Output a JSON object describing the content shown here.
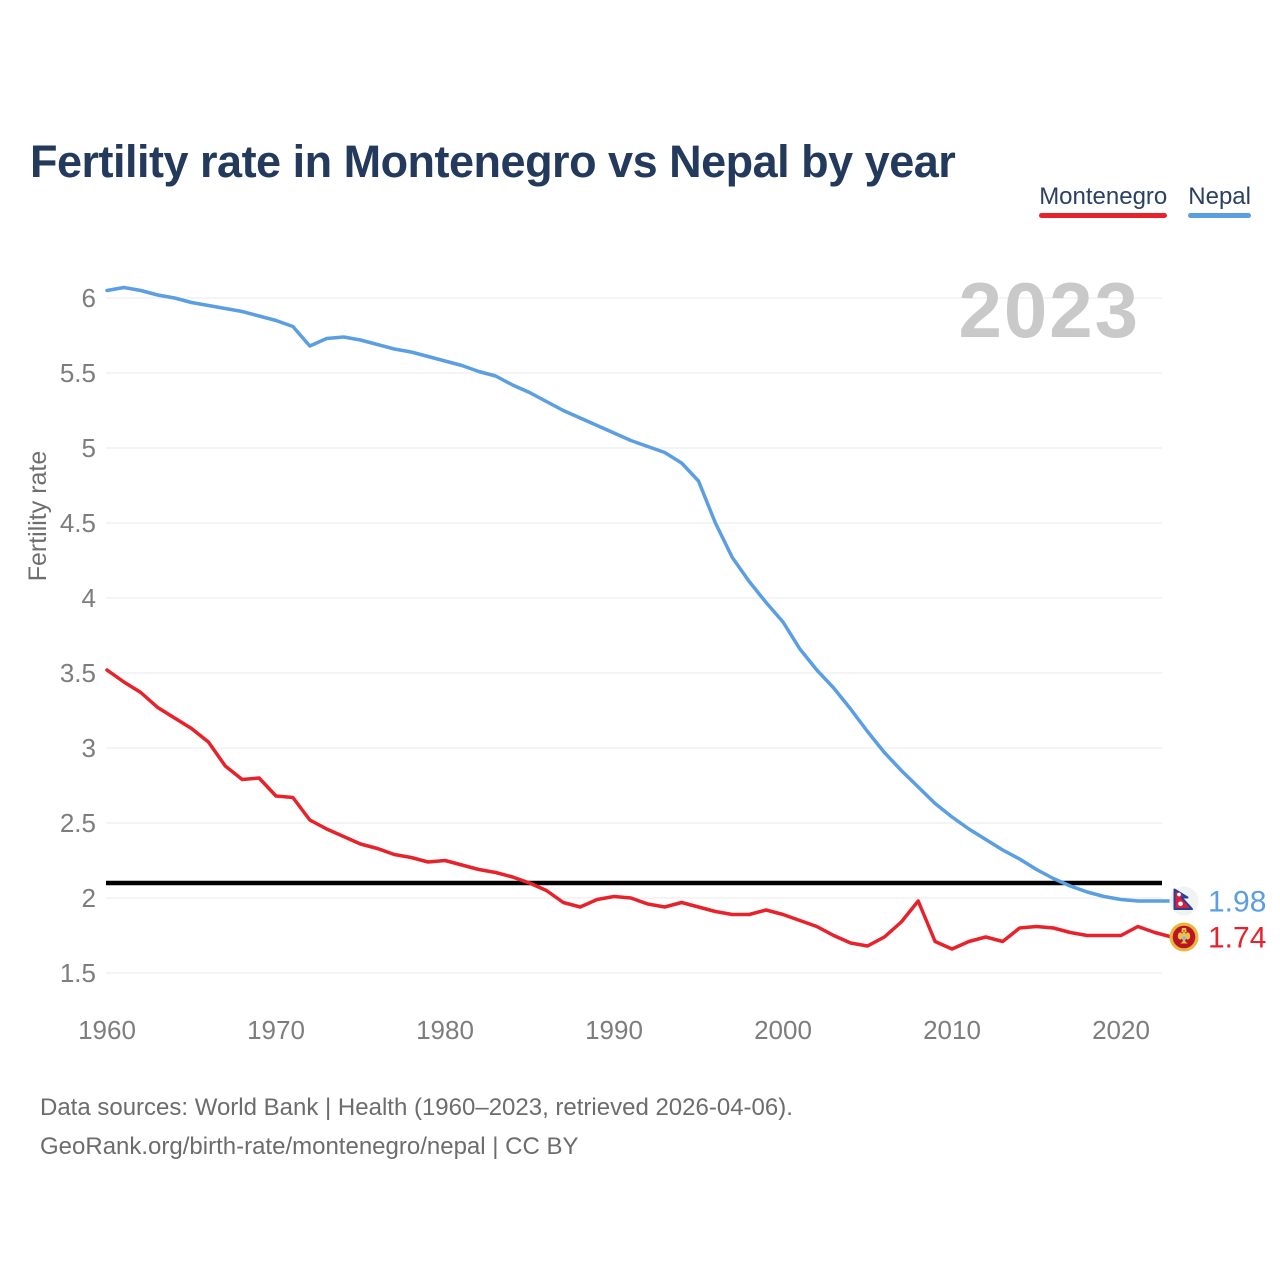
{
  "header": {
    "title": "Fertility rate in Montenegro vs Nepal by year"
  },
  "legend": [
    {
      "label": "Montenegro",
      "color": "#e8222b"
    },
    {
      "label": "Nepal",
      "color": "#5b9ee2"
    }
  ],
  "watermark": "2023",
  "chart_data": {
    "type": "line",
    "title": "Fertility rate in Montenegro vs Nepal by year",
    "xlabel": "",
    "ylabel": "Fertility rate",
    "x_ticks": [
      1960,
      1970,
      1980,
      1990,
      2000,
      2010,
      2020
    ],
    "y_ticks": [
      6,
      5.5,
      5,
      4.5,
      4,
      3.5,
      3,
      2.5,
      2,
      1.5
    ],
    "xlim": [
      1960,
      2023
    ],
    "ylim": [
      1.5,
      6.1
    ],
    "grid": "horizontal-only",
    "legend_position": "top-right",
    "axis_text_color": "#7d7d7d",
    "gridline_color": "#e8e8e8",
    "reference_line": {
      "value": 2.1,
      "color": "#000000"
    },
    "years": [
      1960,
      1961,
      1962,
      1963,
      1964,
      1965,
      1966,
      1967,
      1968,
      1969,
      1970,
      1971,
      1972,
      1973,
      1974,
      1975,
      1976,
      1977,
      1978,
      1979,
      1980,
      1981,
      1982,
      1983,
      1984,
      1985,
      1986,
      1987,
      1988,
      1989,
      1990,
      1991,
      1992,
      1993,
      1994,
      1995,
      1996,
      1997,
      1998,
      1999,
      2000,
      2001,
      2002,
      2003,
      2004,
      2005,
      2006,
      2007,
      2008,
      2009,
      2010,
      2011,
      2012,
      2013,
      2014,
      2015,
      2016,
      2017,
      2018,
      2019,
      2020,
      2021,
      2022,
      2023
    ],
    "series": [
      {
        "name": "Montenegro",
        "color": "#e8222b",
        "flag_icon": "montenegro-flag-icon",
        "end_label": "1.74",
        "values": [
          3.52,
          3.44,
          3.37,
          3.27,
          3.2,
          3.13,
          3.04,
          2.88,
          2.79,
          2.8,
          2.68,
          2.67,
          2.52,
          2.46,
          2.41,
          2.36,
          2.33,
          2.29,
          2.27,
          2.24,
          2.25,
          2.22,
          2.19,
          2.17,
          2.14,
          2.1,
          2.05,
          1.97,
          1.94,
          1.99,
          2.01,
          2.0,
          1.96,
          1.94,
          1.97,
          1.94,
          1.91,
          1.89,
          1.89,
          1.92,
          1.89,
          1.85,
          1.81,
          1.75,
          1.7,
          1.68,
          1.74,
          1.84,
          1.98,
          1.71,
          1.66,
          1.71,
          1.74,
          1.71,
          1.8,
          1.81,
          1.8,
          1.77,
          1.75,
          1.75,
          1.75,
          1.81,
          1.77,
          1.74
        ]
      },
      {
        "name": "Nepal",
        "color": "#5b9ee2",
        "flag_icon": "nepal-flag-icon",
        "end_label": "1.98",
        "values": [
          6.05,
          6.07,
          6.05,
          6.02,
          6.0,
          5.97,
          5.95,
          5.93,
          5.91,
          5.88,
          5.85,
          5.81,
          5.68,
          5.73,
          5.74,
          5.72,
          5.69,
          5.66,
          5.64,
          5.61,
          5.58,
          5.55,
          5.51,
          5.48,
          5.42,
          5.37,
          5.31,
          5.25,
          5.2,
          5.15,
          5.1,
          5.05,
          5.01,
          4.97,
          4.9,
          4.78,
          4.5,
          4.27,
          4.11,
          3.97,
          3.84,
          3.66,
          3.52,
          3.4,
          3.26,
          3.11,
          2.97,
          2.85,
          2.74,
          2.63,
          2.54,
          2.46,
          2.39,
          2.32,
          2.26,
          2.19,
          2.13,
          2.08,
          2.04,
          2.01,
          1.99,
          1.98,
          1.98,
          1.98
        ]
      }
    ]
  },
  "footer": {
    "line1": "Data sources: World Bank | Health (1960–2023, retrieved 2026-04-06).",
    "line2": "GeoRank.org/birth-rate/montenegro/nepal | CC BY"
  }
}
